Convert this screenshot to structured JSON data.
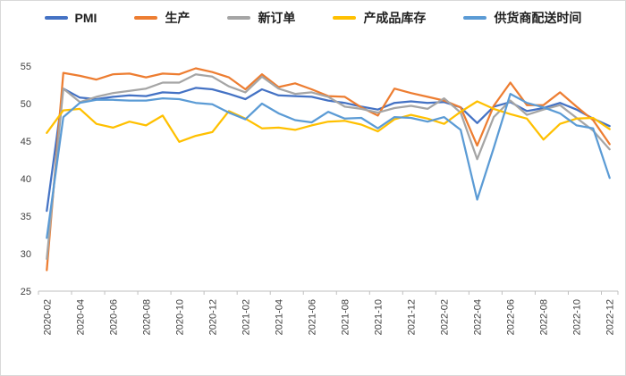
{
  "chart_data": {
    "type": "line",
    "title": "",
    "xlabel": "",
    "ylabel": "",
    "ylim": [
      25,
      55
    ],
    "ytick_step": 5,
    "grid": false,
    "legend_position": "top",
    "axis_color": "#bfbfbf",
    "tick_label_color": "#404040",
    "x": [
      "2020-02",
      "2020-03",
      "2020-04",
      "2020-05",
      "2020-06",
      "2020-07",
      "2020-08",
      "2020-09",
      "2020-10",
      "2020-11",
      "2020-12",
      "2021-01",
      "2021-02",
      "2021-03",
      "2021-04",
      "2021-05",
      "2021-06",
      "2021-07",
      "2021-08",
      "2021-09",
      "2021-10",
      "2021-11",
      "2021-12",
      "2022-01",
      "2022-02",
      "2022-03",
      "2022-04",
      "2022-05",
      "2022-06",
      "2022-07",
      "2022-08",
      "2022-09",
      "2022-10",
      "2022-11",
      "2022-12"
    ],
    "x_label_interval": 2,
    "series": [
      {
        "id": "pmi",
        "name": "PMI",
        "color": "#4472C4",
        "values": [
          35.7,
          52.0,
          50.8,
          50.6,
          50.9,
          51.1,
          51.0,
          51.5,
          51.4,
          52.1,
          51.9,
          51.3,
          50.6,
          51.9,
          51.1,
          51.0,
          50.9,
          50.4,
          50.1,
          49.6,
          49.2,
          50.1,
          50.3,
          50.1,
          50.2,
          49.5,
          47.4,
          49.6,
          50.2,
          49.0,
          49.4,
          50.1,
          49.2,
          48.0,
          47.0
        ]
      },
      {
        "id": "production",
        "name": "生产",
        "color": "#ED7D31",
        "values": [
          27.8,
          54.1,
          53.7,
          53.2,
          53.9,
          54.0,
          53.5,
          54.0,
          53.9,
          54.7,
          54.2,
          53.5,
          51.9,
          53.9,
          52.2,
          52.7,
          51.9,
          51.0,
          50.9,
          49.5,
          48.4,
          52.0,
          51.4,
          50.9,
          50.4,
          49.5,
          44.4,
          49.7,
          52.8,
          49.8,
          49.8,
          51.5,
          49.6,
          47.8,
          44.6
        ]
      },
      {
        "id": "new-orders",
        "name": "新订单",
        "color": "#A5A5A5",
        "values": [
          29.3,
          52.0,
          50.2,
          50.9,
          51.4,
          51.7,
          52.0,
          52.8,
          52.8,
          53.9,
          53.6,
          52.3,
          51.5,
          53.6,
          52.0,
          51.3,
          51.5,
          50.9,
          49.6,
          49.3,
          48.8,
          49.4,
          49.7,
          49.3,
          50.7,
          48.8,
          42.6,
          48.2,
          50.4,
          48.5,
          49.2,
          49.8,
          48.1,
          46.4,
          43.9
        ]
      },
      {
        "id": "finished-goods-inventory",
        "name": "产成品库存",
        "color": "#FFC000",
        "values": [
          46.1,
          49.1,
          49.3,
          47.3,
          46.8,
          47.6,
          47.1,
          48.4,
          44.9,
          45.7,
          46.2,
          49.0,
          48.0,
          46.7,
          46.8,
          46.5,
          47.1,
          47.6,
          47.7,
          47.2,
          46.3,
          47.9,
          48.5,
          48.0,
          47.3,
          48.9,
          50.3,
          49.3,
          48.6,
          48.0,
          45.2,
          47.3,
          48.0,
          48.1,
          46.6
        ]
      },
      {
        "id": "supplier-delivery-time",
        "name": "供货商配送时间",
        "color": "#5B9BD5",
        "values": [
          32.1,
          48.2,
          50.1,
          50.5,
          50.5,
          50.4,
          50.4,
          50.7,
          50.6,
          50.1,
          49.9,
          48.8,
          47.9,
          50.0,
          48.7,
          47.8,
          47.5,
          48.9,
          48.0,
          48.1,
          46.7,
          48.2,
          48.1,
          47.6,
          48.2,
          46.5,
          37.2,
          44.1,
          51.3,
          50.1,
          49.5,
          48.7,
          47.1,
          46.7,
          40.1
        ]
      }
    ]
  }
}
